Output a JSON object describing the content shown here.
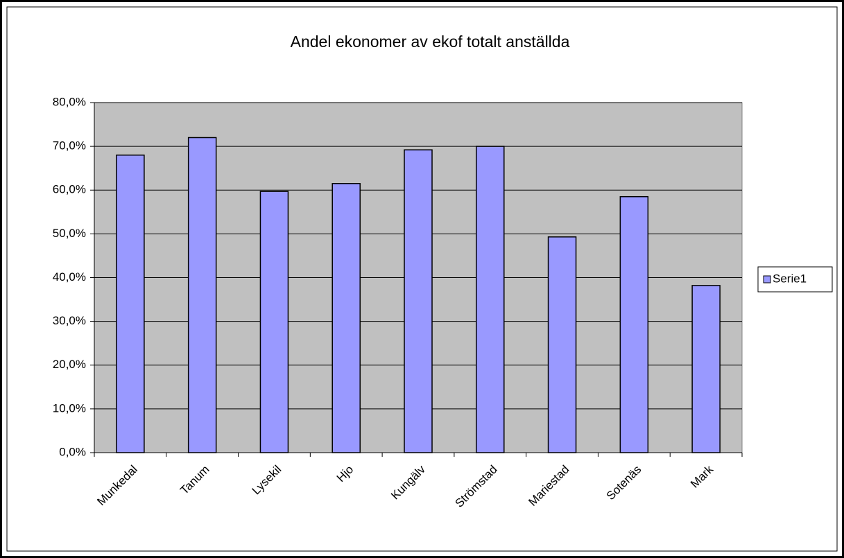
{
  "chart_data": {
    "type": "bar",
    "title": "Andel ekonomer av ekof totalt anställda",
    "categories": [
      "Munkedal",
      "Tanum",
      "Lysekil",
      "Hjo",
      "Kungälv",
      "Strömstad",
      "Mariestad",
      "Sotenäs",
      "Mark"
    ],
    "series": [
      {
        "name": "Serie1",
        "color": "#9999ff",
        "values": [
          68.0,
          72.0,
          59.7,
          61.5,
          69.2,
          70.0,
          49.3,
          58.5,
          38.2
        ]
      }
    ],
    "ylim": [
      0,
      80
    ],
    "yticks": [
      {
        "value": 0,
        "label": "0,0%"
      },
      {
        "value": 10,
        "label": "10,0%"
      },
      {
        "value": 20,
        "label": "20,0%"
      },
      {
        "value": 30,
        "label": "30,0%"
      },
      {
        "value": 40,
        "label": "40,0%"
      },
      {
        "value": 50,
        "label": "50,0%"
      },
      {
        "value": 60,
        "label": "60,0%"
      },
      {
        "value": 70,
        "label": "70,0%"
      },
      {
        "value": 80,
        "label": "80,0%"
      }
    ],
    "grid": true,
    "legend": "right"
  }
}
